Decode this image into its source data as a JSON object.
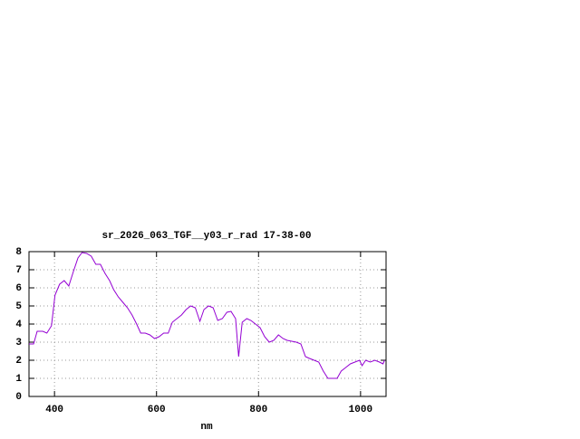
{
  "chart_data": {
    "type": "line",
    "title": "sr_2026_063_TGF__y03_r_rad 17-38-00",
    "x_label": "nm",
    "x": [
      350,
      359,
      366,
      377,
      385,
      394,
      401,
      410,
      419,
      428,
      437,
      446,
      454,
      463,
      472,
      481,
      490,
      499,
      508,
      516,
      525,
      534,
      543,
      552,
      561,
      569,
      578,
      587,
      596,
      605,
      614,
      623,
      631,
      640,
      649,
      658,
      667,
      676,
      685,
      693,
      702,
      711,
      720,
      729,
      738,
      746,
      755,
      761,
      768,
      777,
      785,
      794,
      803,
      812,
      821,
      830,
      839,
      848,
      856,
      865,
      874,
      883,
      892,
      900,
      909,
      918,
      927,
      936,
      945,
      954,
      962,
      971,
      980,
      989,
      998,
      1003,
      1010,
      1019,
      1028,
      1037,
      1044,
      1047
    ],
    "series": [
      {
        "name": "sr_2026_063_TGF__y03_r_rad",
        "color": "#9400d3",
        "values": [
          2.9,
          2.9,
          3.6,
          3.6,
          3.5,
          3.9,
          5.6,
          6.2,
          6.4,
          6.1,
          6.9,
          7.65,
          7.95,
          7.9,
          7.75,
          7.3,
          7.3,
          6.8,
          6.4,
          5.9,
          5.5,
          5.2,
          4.9,
          4.5,
          4.0,
          3.5,
          3.5,
          3.4,
          3.2,
          3.3,
          3.5,
          3.5,
          4.1,
          4.3,
          4.5,
          4.8,
          5.0,
          4.9,
          4.15,
          4.8,
          5.0,
          4.9,
          4.2,
          4.3,
          4.65,
          4.7,
          4.3,
          2.2,
          4.1,
          4.3,
          4.2,
          4.0,
          3.8,
          3.3,
          3.0,
          3.1,
          3.4,
          3.2,
          3.1,
          3.05,
          3.0,
          2.9,
          2.2,
          2.1,
          2.0,
          1.9,
          1.4,
          1.0,
          1.0,
          1.0,
          1.4,
          1.6,
          1.8,
          1.9,
          2.0,
          1.7,
          2.0,
          1.9,
          2.0,
          1.9,
          1.8,
          2.0
        ]
      }
    ],
    "xlim": [
      350,
      1050
    ],
    "xticks": [
      400,
      600,
      800,
      1000
    ],
    "ylim": [
      0,
      8
    ],
    "yticks": [
      0,
      1,
      2,
      3,
      4,
      5,
      6,
      7,
      8
    ],
    "grid": true
  }
}
